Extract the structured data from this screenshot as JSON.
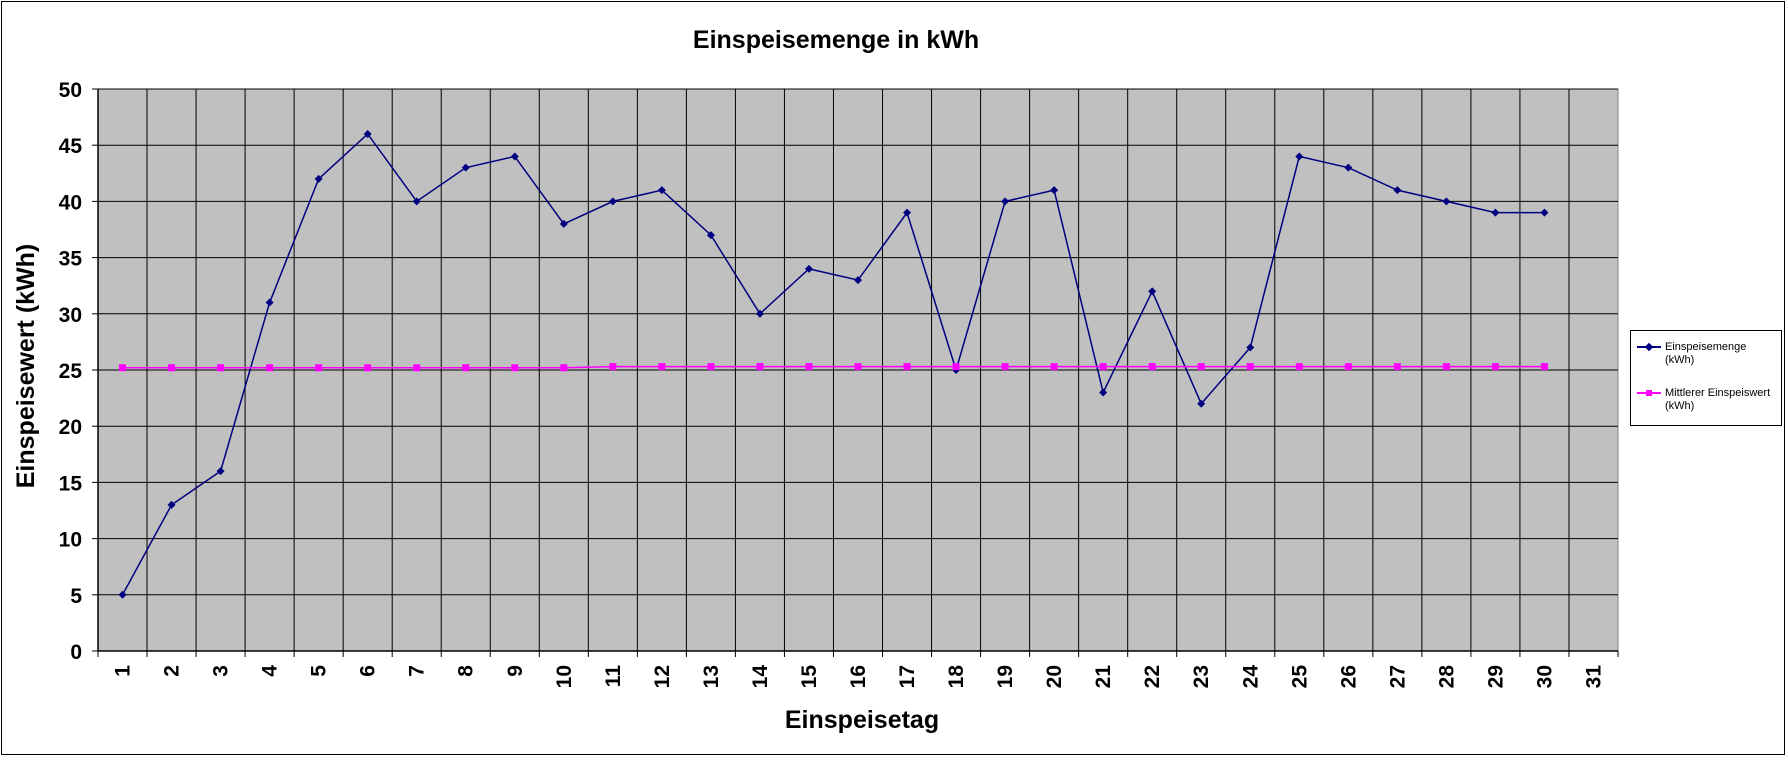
{
  "chart_data": {
    "type": "line",
    "title": "Einspeisemenge in kWh",
    "xlabel": "Einspeisetag",
    "ylabel": "Einspeisewert  (kWh)",
    "categories": [
      "1",
      "2",
      "3",
      "4",
      "5",
      "6",
      "7",
      "8",
      "9",
      "10",
      "11",
      "12",
      "13",
      "14",
      "15",
      "16",
      "17",
      "18",
      "19",
      "20",
      "21",
      "22",
      "23",
      "24",
      "25",
      "26",
      "27",
      "28",
      "29",
      "30",
      "31"
    ],
    "ylim": [
      0,
      50
    ],
    "yticks": [
      "0",
      "5",
      "10",
      "15",
      "20",
      "25",
      "30",
      "35",
      "40",
      "45",
      "50"
    ],
    "grid": true,
    "legend_position": "right",
    "series": [
      {
        "name": "Einspeisemenge (kWh)",
        "color": "#000080",
        "marker": "diamond",
        "values": [
          5,
          13,
          16,
          31,
          42,
          46,
          40,
          43,
          44,
          38,
          40,
          41,
          37,
          30,
          34,
          33,
          39,
          25,
          40,
          41,
          23,
          32,
          22,
          27,
          44,
          43,
          41,
          40,
          39,
          39,
          null
        ]
      },
      {
        "name": "Mittlerer Einspeiswert (kWh)",
        "color": "#ff00ff",
        "marker": "square",
        "values": [
          25.2,
          25.2,
          25.2,
          25.2,
          25.2,
          25.2,
          25.2,
          25.2,
          25.2,
          25.2,
          25.3,
          25.3,
          25.3,
          25.3,
          25.3,
          25.3,
          25.3,
          25.3,
          25.3,
          25.3,
          25.3,
          25.3,
          25.3,
          25.3,
          25.3,
          25.3,
          25.3,
          25.3,
          25.3,
          25.3,
          null
        ]
      }
    ],
    "plot_background": "#c0c0c0"
  }
}
